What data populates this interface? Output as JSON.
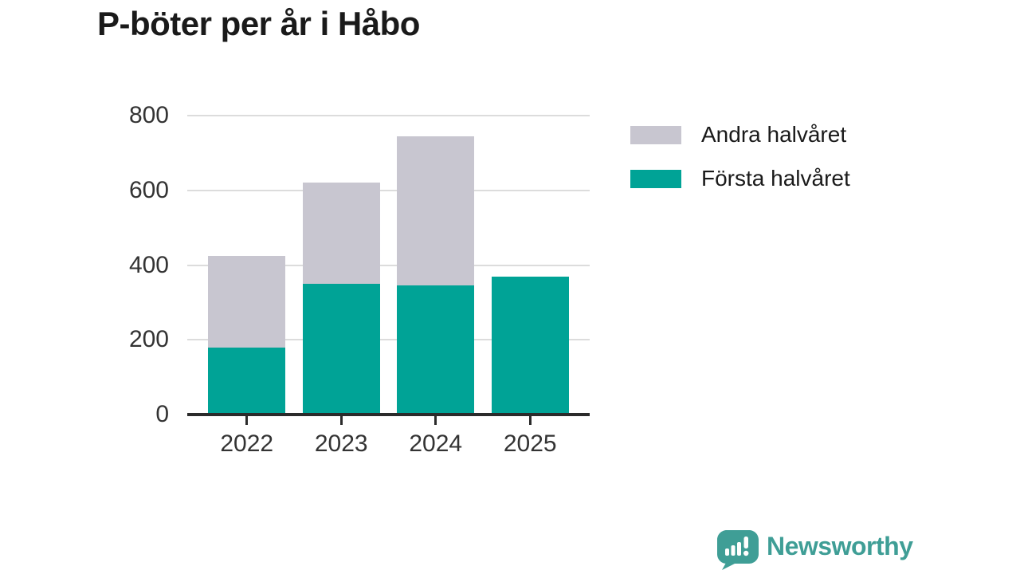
{
  "title": "P-böter per år i Håbo",
  "chart_data": {
    "type": "bar",
    "stacked": true,
    "title": "P-böter per år i Håbo",
    "categories": [
      "2022",
      "2023",
      "2024",
      "2025"
    ],
    "series": [
      {
        "name": "Första halvåret",
        "color": "#00a396",
        "values": [
          180,
          350,
          345,
          370
        ]
      },
      {
        "name": "Andra halvåret",
        "color": "#c8c6d0",
        "values": [
          245,
          270,
          400,
          0
        ]
      }
    ],
    "totals": [
      425,
      620,
      745,
      370
    ],
    "xlabel": "",
    "ylabel": "",
    "ylim": [
      0,
      800
    ],
    "yticks": [
      0,
      200,
      400,
      600,
      800
    ],
    "grid": true,
    "legend_position": "right",
    "legend": [
      {
        "label": "Andra halvåret",
        "color": "#c8c6d0"
      },
      {
        "label": "Första halvåret",
        "color": "#00a396"
      }
    ]
  },
  "colors": {
    "first_half": "#00a396",
    "second_half": "#c8c6d0",
    "gridline": "#dcdcdc",
    "axis": "#2b2b2b",
    "tick_text": "#333333",
    "title_text": "#1a1a1a",
    "brand": "#3f9e96"
  },
  "branding": {
    "wordmark": "Newsworthy",
    "logo": "newsworthy-speech-bubble-barchart-icon"
  }
}
